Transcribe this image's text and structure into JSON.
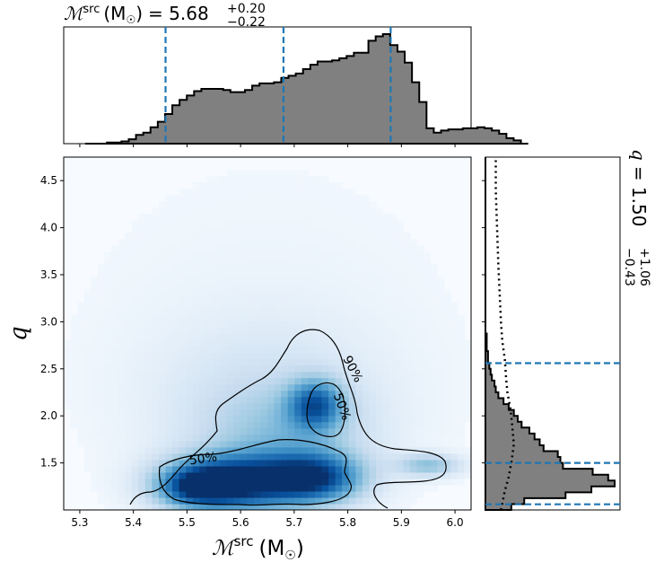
{
  "chart_data": {
    "type": "corner",
    "top_title": {
      "symbol": "ℳ",
      "sup": "src",
      "unit": "(M",
      "unit_sub": "☉",
      "unit_close": ")",
      "eq": "= 5.68",
      "plus": "+0.20",
      "minus": "−0.22"
    },
    "right_title": {
      "symbol": "q",
      "eq": "= 1.50",
      "plus": "+1.06",
      "minus": "−0.43"
    },
    "xlabel": {
      "symbol": "ℳ",
      "sup": "src",
      "unit": "(M",
      "unit_sub": "☉",
      "unit_close": ")"
    },
    "ylabel": "q",
    "xlim": [
      5.27,
      6.03
    ],
    "ylim": [
      1.0,
      4.75
    ],
    "x_ticks": [
      "5.3",
      "5.4",
      "5.5",
      "5.6",
      "5.7",
      "5.8",
      "5.9",
      "6.0"
    ],
    "y_ticks": [
      "1.5",
      "2.0",
      "2.5",
      "3.0",
      "3.5",
      "4.0",
      "4.5"
    ],
    "x_marginal": {
      "bin_edges_start": 5.31,
      "bin_width": 0.01355,
      "heights": [
        0,
        0,
        0,
        0.01,
        0.01,
        0.02,
        0.04,
        0.08,
        0.1,
        0.15,
        0.2,
        0.27,
        0.35,
        0.4,
        0.44,
        0.48,
        0.5,
        0.5,
        0.5,
        0.49,
        0.47,
        0.47,
        0.49,
        0.53,
        0.55,
        0.55,
        0.56,
        0.6,
        0.62,
        0.64,
        0.68,
        0.72,
        0.75,
        0.75,
        0.76,
        0.78,
        0.8,
        0.83,
        0.83,
        0.94,
        0.98,
        1.0,
        0.9,
        0.84,
        0.74,
        0.56,
        0.38,
        0.14,
        0.1,
        0.12,
        0.13,
        0.13,
        0.14,
        0.14,
        0.15,
        0.14,
        0.12,
        0.09,
        0.05,
        0.03,
        0
      ],
      "quantile_lines": [
        5.46,
        5.68,
        5.88
      ],
      "color": "#808080"
    },
    "y_marginal": {
      "bin_edges_start": 1.0,
      "bin_width": 0.0625,
      "heights": [
        0.2,
        0.3,
        0.62,
        0.82,
        1.0,
        0.95,
        0.83,
        0.6,
        0.58,
        0.56,
        0.45,
        0.42,
        0.38,
        0.34,
        0.28,
        0.25,
        0.22,
        0.18,
        0.14,
        0.1,
        0.08,
        0.07,
        0.05,
        0.04,
        0.03,
        0.02,
        0.02,
        0.01,
        0.01,
        0.01,
        0,
        0,
        0,
        0,
        0,
        0,
        0,
        0,
        0,
        0,
        0,
        0,
        0,
        0,
        0,
        0,
        0,
        0,
        0,
        0,
        0,
        0,
        0,
        0,
        0,
        0,
        0,
        0,
        0,
        0
      ],
      "quantile_lines": [
        1.06,
        1.5,
        2.56
      ],
      "prior_x": [
        0.12,
        0.15,
        0.18,
        0.2,
        0.22,
        0.21,
        0.2,
        0.19,
        0.17,
        0.16,
        0.15,
        0.13,
        0.12,
        0.11,
        0.1,
        0.09,
        0.08,
        0.08
      ],
      "prior_y": [
        1.0,
        1.2,
        1.35,
        1.5,
        1.7,
        1.85,
        2.0,
        2.1,
        2.25,
        2.4,
        2.6,
        2.8,
        3.0,
        3.3,
        3.6,
        4.0,
        4.4,
        4.75
      ],
      "color": "#808080"
    },
    "contours": [
      {
        "label": "50%",
        "label_pos": [
          5.53,
          1.55
        ]
      },
      {
        "label": "50%",
        "label_pos": [
          5.79,
          2.1
        ]
      },
      {
        "label": "90%",
        "label_pos": [
          5.81,
          2.5
        ]
      }
    ],
    "density_blobs": [
      {
        "cx": 5.6,
        "cy": 1.3,
        "sx": 0.085,
        "sy": 0.2,
        "w": 1.0
      },
      {
        "cx": 5.52,
        "cy": 1.25,
        "sx": 0.05,
        "sy": 0.15,
        "w": 0.7
      },
      {
        "cx": 5.74,
        "cy": 1.35,
        "sx": 0.06,
        "sy": 0.18,
        "w": 0.8
      },
      {
        "cx": 5.74,
        "cy": 2.12,
        "sx": 0.035,
        "sy": 0.18,
        "w": 0.7
      },
      {
        "cx": 5.68,
        "cy": 1.8,
        "sx": 0.1,
        "sy": 0.35,
        "w": 0.25
      },
      {
        "cx": 5.95,
        "cy": 1.48,
        "sx": 0.04,
        "sy": 0.08,
        "w": 0.35
      },
      {
        "cx": 5.65,
        "cy": 2.2,
        "sx": 0.15,
        "sy": 0.6,
        "w": 0.12
      },
      {
        "cx": 5.65,
        "cy": 3.0,
        "sx": 0.35,
        "sy": 1.8,
        "w": 0.03
      }
    ],
    "colormap": "Blues"
  }
}
